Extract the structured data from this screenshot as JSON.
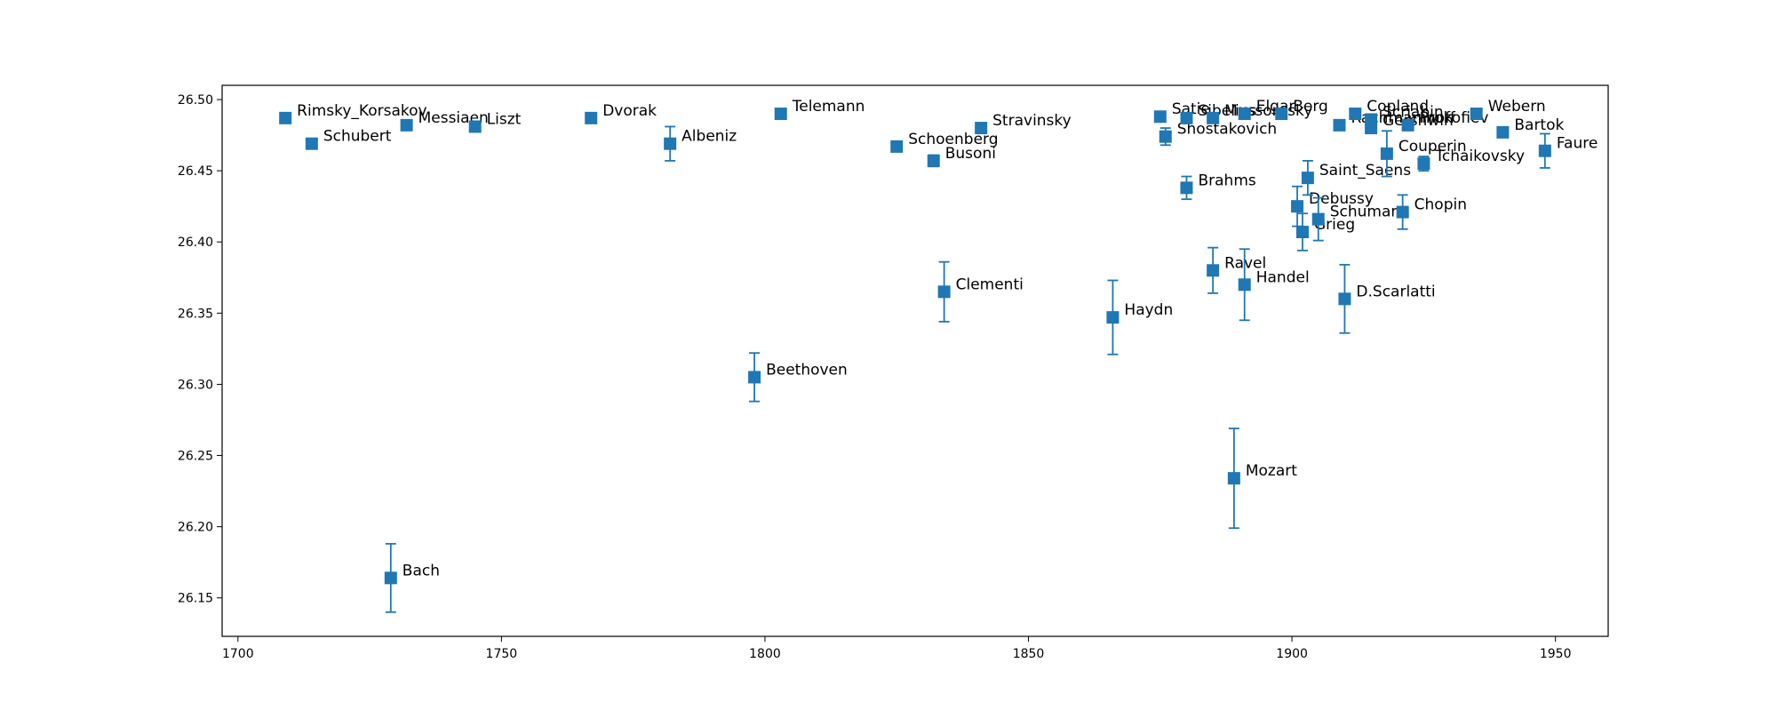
{
  "chart_data": {
    "type": "scatter",
    "title": "",
    "xlabel": "",
    "ylabel": "",
    "xlim": [
      1697,
      1960
    ],
    "ylim": [
      26.123,
      26.51
    ],
    "grid": false,
    "legend": "none",
    "marker": "square",
    "color": "#1f77b4",
    "x_ticks": [
      1700,
      1750,
      1800,
      1850,
      1900,
      1950
    ],
    "y_ticks": [
      26.15,
      26.2,
      26.25,
      26.3,
      26.35,
      26.4,
      26.45,
      26.5
    ],
    "x_tick_labels": [
      "1700",
      "1750",
      "1800",
      "1850",
      "1900",
      "1950"
    ],
    "y_tick_labels": [
      "26.15",
      "26.20",
      "26.25",
      "26.30",
      "26.35",
      "26.40",
      "26.45",
      "26.50"
    ],
    "points": [
      {
        "label": "Rimsky_Korsakov",
        "x": 1709,
        "y": 26.487,
        "err": 0
      },
      {
        "label": "Schubert",
        "x": 1714,
        "y": 26.469,
        "err": 0
      },
      {
        "label": "Bach",
        "x": 1729,
        "y": 26.164,
        "err": 0.024
      },
      {
        "label": "Messiaen",
        "x": 1732,
        "y": 26.482,
        "err": 0
      },
      {
        "label": "Liszt",
        "x": 1745,
        "y": 26.481,
        "err": 0
      },
      {
        "label": "Dvorak",
        "x": 1767,
        "y": 26.487,
        "err": 0
      },
      {
        "label": "Albeniz",
        "x": 1782,
        "y": 26.469,
        "err": 0.012
      },
      {
        "label": "Beethoven",
        "x": 1798,
        "y": 26.305,
        "err": 0.017
      },
      {
        "label": "Telemann",
        "x": 1803,
        "y": 26.49,
        "err": 0
      },
      {
        "label": "Schoenberg",
        "x": 1825,
        "y": 26.467,
        "err": 0
      },
      {
        "label": "Busoni",
        "x": 1832,
        "y": 26.457,
        "err": 0.004
      },
      {
        "label": "Clementi",
        "x": 1834,
        "y": 26.365,
        "err": 0.021
      },
      {
        "label": "Stravinsky",
        "x": 1841,
        "y": 26.48,
        "err": 0
      },
      {
        "label": "Haydn",
        "x": 1866,
        "y": 26.347,
        "err": 0.026
      },
      {
        "label": "Satie",
        "x": 1875,
        "y": 26.488,
        "err": 0
      },
      {
        "label": "Shostakovich",
        "x": 1876,
        "y": 26.474,
        "err": 0.006
      },
      {
        "label": "Brahms",
        "x": 1880,
        "y": 26.438,
        "err": 0.008
      },
      {
        "label": "Sibelius",
        "x": 1880,
        "y": 26.487,
        "err": 0
      },
      {
        "label": "Ravel",
        "x": 1885,
        "y": 26.38,
        "err": 0.016
      },
      {
        "label": "Mussorgsky",
        "x": 1885,
        "y": 26.487,
        "err": 0
      },
      {
        "label": "Mozart",
        "x": 1889,
        "y": 26.234,
        "err": 0.035
      },
      {
        "label": "Handel",
        "x": 1891,
        "y": 26.37,
        "err": 0.025
      },
      {
        "label": "Elgar",
        "x": 1891,
        "y": 26.49,
        "err": 0
      },
      {
        "label": "Berg",
        "x": 1898,
        "y": 26.49,
        "err": 0
      },
      {
        "label": "Debussy",
        "x": 1901,
        "y": 26.425,
        "err": 0.014
      },
      {
        "label": "Grieg",
        "x": 1902,
        "y": 26.407,
        "err": 0.013
      },
      {
        "label": "Saint_Saens",
        "x": 1903,
        "y": 26.445,
        "err": 0.012
      },
      {
        "label": "Schumann",
        "x": 1905,
        "y": 26.416,
        "err": 0.015
      },
      {
        "label": "Rachmaninoff",
        "x": 1909,
        "y": 26.482,
        "err": 0
      },
      {
        "label": "D.Scarlatti",
        "x": 1910,
        "y": 26.36,
        "err": 0.024
      },
      {
        "label": "Copland",
        "x": 1912,
        "y": 26.49,
        "err": 0
      },
      {
        "label": "Gershwin",
        "x": 1915,
        "y": 26.48,
        "err": 0
      },
      {
        "label": "Scriabin",
        "x": 1915,
        "y": 26.486,
        "err": 0
      },
      {
        "label": "Couperin",
        "x": 1918,
        "y": 26.462,
        "err": 0.016
      },
      {
        "label": "Chopin",
        "x": 1921,
        "y": 26.421,
        "err": 0.012
      },
      {
        "label": "Prokofiev",
        "x": 1922,
        "y": 26.482,
        "err": 0
      },
      {
        "label": "Tchaikovsky",
        "x": 1925,
        "y": 26.455,
        "err": 0.005
      },
      {
        "label": "Webern",
        "x": 1935,
        "y": 26.49,
        "err": 0
      },
      {
        "label": "Bartok",
        "x": 1940,
        "y": 26.477,
        "err": 0
      },
      {
        "label": "Faure",
        "x": 1948,
        "y": 26.464,
        "err": 0.012
      }
    ]
  }
}
